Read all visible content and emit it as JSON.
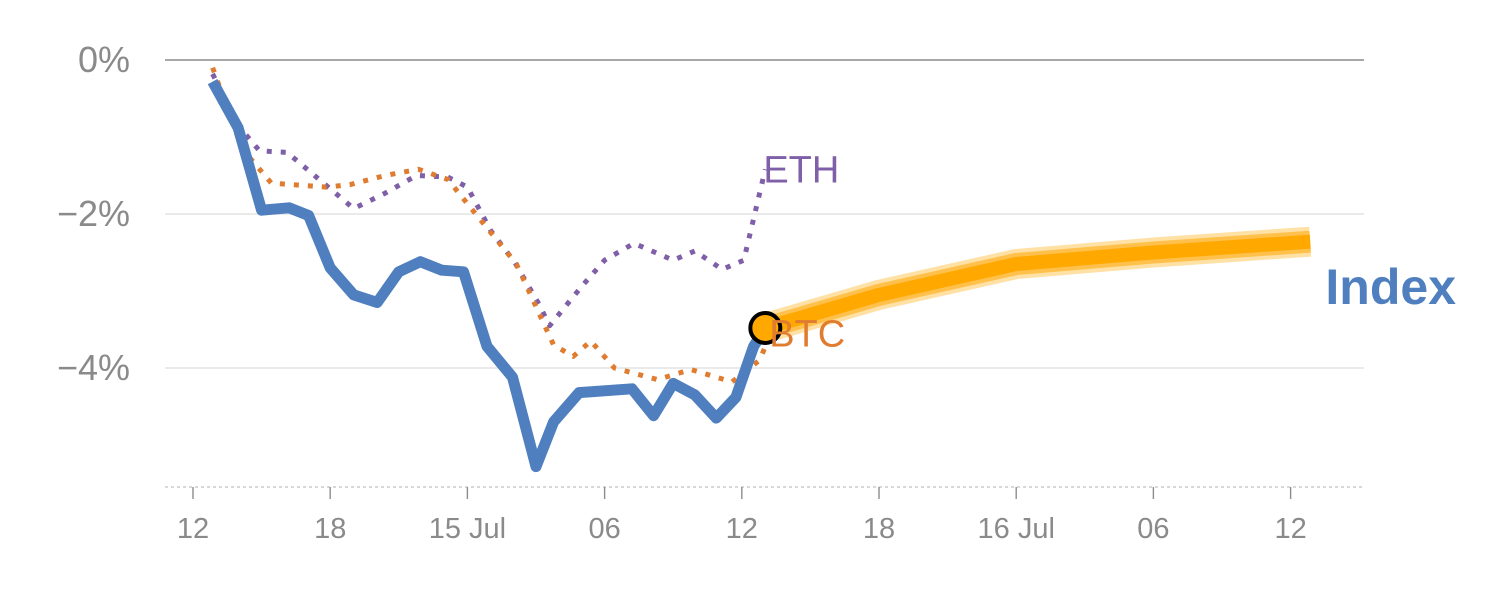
{
  "chart_data": {
    "type": "line",
    "title": "",
    "xlabel": "",
    "ylabel": "",
    "ylim": [
      -5.55,
      0
    ],
    "y_ticks": [
      {
        "value": 0,
        "label": "0%"
      },
      {
        "value": -2,
        "label": "−2%"
      },
      {
        "value": -4,
        "label": "−4%"
      }
    ],
    "x_domain": [
      0,
      62.6
    ],
    "x_ticks": [
      {
        "x": 0,
        "label": "12"
      },
      {
        "x": 7,
        "label": "18"
      },
      {
        "x": 14,
        "label": "15 Jul"
      },
      {
        "x": 21,
        "label": "06"
      },
      {
        "x": 28,
        "label": "12"
      },
      {
        "x": 35,
        "label": "18"
      },
      {
        "x": 42,
        "label": "16 Jul"
      },
      {
        "x": 49,
        "label": "06"
      },
      {
        "x": 56,
        "label": "12"
      }
    ],
    "grid": true,
    "series": [
      {
        "name": "ETH",
        "color": "#7f5fa8",
        "style": "dotted",
        "label_at": "end",
        "points": [
          [
            1,
            -0.18
          ],
          [
            2.3,
            -0.85
          ],
          [
            3.4,
            -1.18
          ],
          [
            4.8,
            -1.2
          ],
          [
            6.2,
            -1.5
          ],
          [
            8.2,
            -1.93
          ],
          [
            9.8,
            -1.73
          ],
          [
            11.4,
            -1.5
          ],
          [
            13,
            -1.52
          ],
          [
            14,
            -1.65
          ],
          [
            15.2,
            -2.22
          ],
          [
            16.4,
            -2.62
          ],
          [
            17.6,
            -3.15
          ],
          [
            18.2,
            -3.45
          ],
          [
            19.8,
            -2.95
          ],
          [
            21,
            -2.6
          ],
          [
            22.5,
            -2.38
          ],
          [
            24.5,
            -2.6
          ],
          [
            25.6,
            -2.48
          ],
          [
            27,
            -2.72
          ],
          [
            28.1,
            -2.6
          ],
          [
            29.2,
            -1.42
          ]
        ]
      },
      {
        "name": "BTC",
        "color": "#e07c30",
        "style": "dotted",
        "label_at": "end",
        "points": [
          [
            1,
            -0.1
          ],
          [
            2.5,
            -1.15
          ],
          [
            4,
            -1.6
          ],
          [
            6.8,
            -1.65
          ],
          [
            8,
            -1.62
          ],
          [
            9.8,
            -1.5
          ],
          [
            11.5,
            -1.42
          ],
          [
            13,
            -1.55
          ],
          [
            15,
            -2.18
          ],
          [
            16.5,
            -2.65
          ],
          [
            18.4,
            -3.7
          ],
          [
            19.4,
            -3.85
          ],
          [
            20.3,
            -3.65
          ],
          [
            21.5,
            -4.0
          ],
          [
            23.7,
            -4.15
          ],
          [
            25.4,
            -4.02
          ],
          [
            27.5,
            -4.18
          ],
          [
            28.9,
            -3.9
          ],
          [
            29.5,
            -3.55
          ]
        ]
      },
      {
        "name": "Index",
        "color": "#4f7fbf",
        "style": "solid",
        "label_at": "right",
        "points": [
          [
            1,
            -0.28
          ],
          [
            2.3,
            -0.88
          ],
          [
            3.5,
            -1.95
          ],
          [
            4.9,
            -1.92
          ],
          [
            5.9,
            -2.02
          ],
          [
            7,
            -2.7
          ],
          [
            8.2,
            -3.05
          ],
          [
            9.4,
            -3.15
          ],
          [
            10.5,
            -2.75
          ],
          [
            11.6,
            -2.62
          ],
          [
            12.7,
            -2.73
          ],
          [
            13.8,
            -2.75
          ],
          [
            15,
            -3.72
          ],
          [
            16.3,
            -4.12
          ],
          [
            17.5,
            -5.28
          ],
          [
            18.4,
            -4.7
          ],
          [
            19.7,
            -4.32
          ],
          [
            22.4,
            -4.27
          ],
          [
            23.5,
            -4.62
          ],
          [
            24.5,
            -4.2
          ],
          [
            25.6,
            -4.35
          ],
          [
            26.7,
            -4.65
          ],
          [
            27.7,
            -4.38
          ],
          [
            28.6,
            -3.72
          ],
          [
            29.2,
            -3.48
          ]
        ]
      },
      {
        "name": "",
        "color": "#ffa800",
        "style": "band",
        "points": [
          [
            29.2,
            -3.48
          ],
          [
            35,
            -3.05
          ],
          [
            42,
            -2.65
          ],
          [
            49,
            -2.5
          ],
          [
            57,
            -2.36
          ]
        ]
      }
    ],
    "marker": {
      "x": 29.2,
      "y": -3.48,
      "fill": "#ffa800",
      "stroke": "#000000"
    }
  }
}
